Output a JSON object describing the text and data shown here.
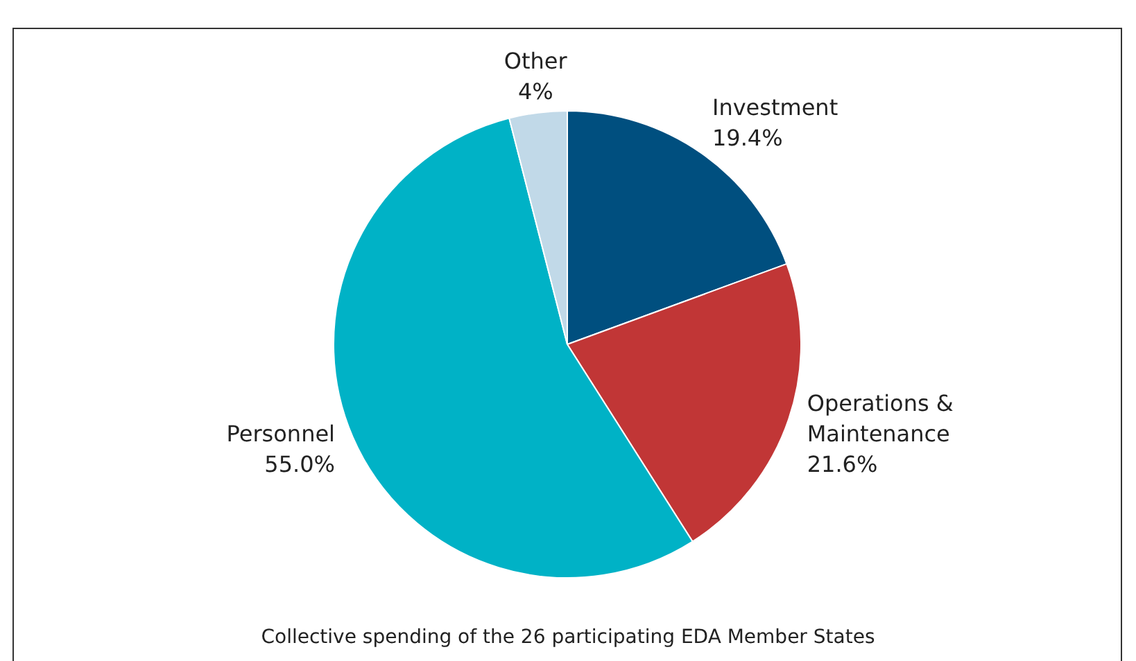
{
  "chart_data": {
    "type": "pie",
    "categories": [
      "Investment",
      "Operations & Maintenance",
      "Personnel",
      "Other"
    ],
    "values": [
      19.4,
      21.6,
      55.0,
      4
    ],
    "value_labels": [
      "19.4%",
      "21.6%",
      "55.0%",
      "4%"
    ],
    "colors": [
      "#004f7f",
      "#c13636",
      "#00b2c6",
      "#c1d9e8"
    ],
    "annotations": [
      "Collective spending of the 26 participating EDA Member States"
    ],
    "legend": false
  }
}
